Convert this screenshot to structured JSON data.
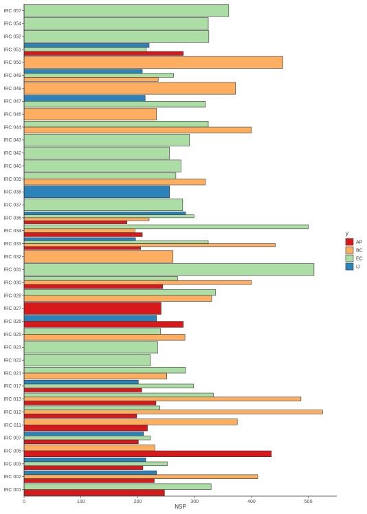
{
  "chart_data": {
    "type": "bar",
    "orientation": "horizontal",
    "xlabel": "NSP",
    "ylabel": "",
    "xlim": [
      0,
      550
    ],
    "xticks": [
      0,
      100,
      200,
      300,
      400,
      500
    ],
    "legend": {
      "title": "y",
      "position": "right",
      "entries": [
        {
          "key": "AP",
          "color": "#d7191c"
        },
        {
          "key": "BC",
          "color": "#fdae61"
        },
        {
          "key": "EC",
          "color": "#abdda4"
        },
        {
          "key": "IJ",
          "color": "#2b83ba"
        }
      ]
    },
    "categories": [
      {
        "label": "IRC 057",
        "bars": [
          {
            "group": "EC",
            "value": 360
          }
        ]
      },
      {
        "label": "IRC 054",
        "bars": [
          {
            "group": "EC",
            "value": 324
          }
        ]
      },
      {
        "label": "IRC 052",
        "bars": [
          {
            "group": "EC",
            "value": 325
          }
        ]
      },
      {
        "label": "IRC 051",
        "bars": [
          {
            "group": "IJ",
            "value": 220
          },
          {
            "group": "EC",
            "value": 215
          },
          {
            "group": "AP",
            "value": 280
          }
        ]
      },
      {
        "label": "IRC 050",
        "bars": [
          {
            "group": "BC",
            "value": 455
          }
        ]
      },
      {
        "label": "IRC 049",
        "bars": [
          {
            "group": "IJ",
            "value": 208
          },
          {
            "group": "EC",
            "value": 263
          },
          {
            "group": "BC",
            "value": 236
          }
        ]
      },
      {
        "label": "IRC 048",
        "bars": [
          {
            "group": "BC",
            "value": 372
          }
        ]
      },
      {
        "label": "IRC 047",
        "bars": [
          {
            "group": "IJ",
            "value": 213
          },
          {
            "group": "EC",
            "value": 319
          }
        ]
      },
      {
        "label": "IRC 046",
        "bars": [
          {
            "group": "BC",
            "value": 233
          }
        ]
      },
      {
        "label": "IRC 044",
        "bars": [
          {
            "group": "EC",
            "value": 324
          },
          {
            "group": "BC",
            "value": 400
          }
        ]
      },
      {
        "label": "IRC 043",
        "bars": [
          {
            "group": "EC",
            "value": 291
          }
        ]
      },
      {
        "label": "IRC 042",
        "bars": [
          {
            "group": "EC",
            "value": 256
          }
        ]
      },
      {
        "label": "IRC 040",
        "bars": [
          {
            "group": "EC",
            "value": 276
          }
        ]
      },
      {
        "label": "IRC 039",
        "bars": [
          {
            "group": "EC",
            "value": 267
          },
          {
            "group": "BC",
            "value": 319
          }
        ]
      },
      {
        "label": "IRC 038",
        "bars": [
          {
            "group": "IJ",
            "value": 256
          }
        ]
      },
      {
        "label": "IRC 037",
        "bars": [
          {
            "group": "EC",
            "value": 279
          }
        ]
      },
      {
        "label": "IRC 036",
        "bars": [
          {
            "group": "IJ",
            "value": 284
          },
          {
            "group": "EC",
            "value": 299
          },
          {
            "group": "BC",
            "value": 220
          },
          {
            "group": "AP",
            "value": 181
          }
        ]
      },
      {
        "label": "IRC 034",
        "bars": [
          {
            "group": "EC",
            "value": 500
          },
          {
            "group": "BC",
            "value": 195
          },
          {
            "group": "AP",
            "value": 208
          }
        ]
      },
      {
        "label": "IRC 033",
        "bars": [
          {
            "group": "IJ",
            "value": 196
          },
          {
            "group": "EC",
            "value": 324
          },
          {
            "group": "BC",
            "value": 442
          },
          {
            "group": "AP",
            "value": 205
          }
        ]
      },
      {
        "label": "IRC 032",
        "bars": [
          {
            "group": "BC",
            "value": 262
          }
        ]
      },
      {
        "label": "IRC 031",
        "bars": [
          {
            "group": "EC",
            "value": 510
          }
        ]
      },
      {
        "label": "IRC 030",
        "bars": [
          {
            "group": "EC",
            "value": 270
          },
          {
            "group": "BC",
            "value": 400
          },
          {
            "group": "AP",
            "value": 244
          }
        ]
      },
      {
        "label": "IRC 028",
        "bars": [
          {
            "group": "EC",
            "value": 337
          },
          {
            "group": "BC",
            "value": 330
          }
        ]
      },
      {
        "label": "IRC 027",
        "bars": [
          {
            "group": "AP",
            "value": 241
          }
        ]
      },
      {
        "label": "IRC 026",
        "bars": [
          {
            "group": "IJ",
            "value": 233
          },
          {
            "group": "AP",
            "value": 280
          }
        ]
      },
      {
        "label": "IRC 025",
        "bars": [
          {
            "group": "EC",
            "value": 240
          },
          {
            "group": "BC",
            "value": 283
          }
        ]
      },
      {
        "label": "IRC 023",
        "bars": [
          {
            "group": "EC",
            "value": 235
          }
        ]
      },
      {
        "label": "IRC 022",
        "bars": [
          {
            "group": "EC",
            "value": 222
          }
        ]
      },
      {
        "label": "IRC 021",
        "bars": [
          {
            "group": "EC",
            "value": 284
          },
          {
            "group": "BC",
            "value": 251
          }
        ]
      },
      {
        "label": "IRC 017",
        "bars": [
          {
            "group": "IJ",
            "value": 201
          },
          {
            "group": "EC",
            "value": 298
          },
          {
            "group": "AP",
            "value": 207
          }
        ]
      },
      {
        "label": "IRC 013",
        "bars": [
          {
            "group": "EC",
            "value": 333
          },
          {
            "group": "BC",
            "value": 487
          },
          {
            "group": "AP",
            "value": 232
          }
        ]
      },
      {
        "label": "IRC 012",
        "bars": [
          {
            "group": "EC",
            "value": 239
          },
          {
            "group": "BC",
            "value": 525
          },
          {
            "group": "AP",
            "value": 198
          }
        ]
      },
      {
        "label": "IRC 011",
        "bars": [
          {
            "group": "BC",
            "value": 375
          },
          {
            "group": "AP",
            "value": 217
          }
        ]
      },
      {
        "label": "IRC 007",
        "bars": [
          {
            "group": "IJ",
            "value": 210
          },
          {
            "group": "EC",
            "value": 222
          },
          {
            "group": "AP",
            "value": 201
          }
        ]
      },
      {
        "label": "IRC 005",
        "bars": [
          {
            "group": "BC",
            "value": 230
          },
          {
            "group": "AP",
            "value": 435
          }
        ]
      },
      {
        "label": "IRC 003",
        "bars": [
          {
            "group": "IJ",
            "value": 214
          },
          {
            "group": "EC",
            "value": 252
          },
          {
            "group": "AP",
            "value": 209
          }
        ]
      },
      {
        "label": "IRC 002",
        "bars": [
          {
            "group": "IJ",
            "value": 233
          },
          {
            "group": "BC",
            "value": 411
          },
          {
            "group": "AP",
            "value": 229
          }
        ]
      },
      {
        "label": "IRC 001",
        "bars": [
          {
            "group": "EC",
            "value": 329
          },
          {
            "group": "AP",
            "value": 247
          }
        ]
      }
    ]
  }
}
